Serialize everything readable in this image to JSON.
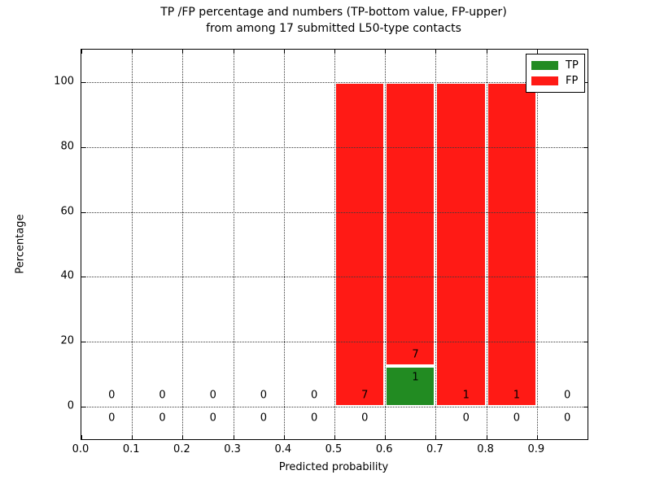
{
  "title": {
    "line1": "TP /FP percentage and numbers (TP-bottom value, FP-upper)",
    "line2": "from among 17 submitted L50-type contacts"
  },
  "axes": {
    "xlabel": "Predicted probability",
    "ylabel": "Percentage",
    "xtick_labels": [
      "0.0",
      "0.1",
      "0.2",
      "0.3",
      "0.4",
      "0.5",
      "0.6",
      "0.7",
      "0.8",
      "0.9"
    ],
    "ytick_labels": [
      "0",
      "20",
      "40",
      "60",
      "80",
      "100"
    ]
  },
  "legend": {
    "items": [
      {
        "label": "TP",
        "color": "#228b22"
      },
      {
        "label": "FP",
        "color": "#ff1a15"
      }
    ]
  },
  "colors": {
    "tp": "#228b22",
    "fp": "#ff1a15",
    "grid": "#3a3a3a",
    "text": "#000000",
    "background": "#ffffff"
  },
  "chart_data": {
    "type": "bar",
    "stacked": true,
    "title": "TP /FP percentage and numbers (TP-bottom value, FP-upper) from among 17 submitted L50-type contacts",
    "xlabel": "Predicted probability",
    "ylabel": "Percentage",
    "xlim": [
      0.0,
      1.0
    ],
    "ylim": [
      -10,
      110
    ],
    "xticks": [
      0.0,
      0.1,
      0.2,
      0.3,
      0.4,
      0.5,
      0.6,
      0.7,
      0.8,
      0.9
    ],
    "yticks": [
      0,
      20,
      40,
      60,
      80,
      100
    ],
    "grid": "dotted, drawn above bars",
    "legend_position": "upper right",
    "total_contacts": 17,
    "bin_width": 0.1,
    "label_offset_pct": 3.5,
    "label_x_offset": 0.06,
    "series": [
      {
        "name": "TP",
        "color": "#228b22",
        "pct_values": [
          0,
          0,
          0,
          0,
          0,
          0,
          12.5,
          0,
          0,
          0
        ],
        "counts": [
          0,
          0,
          0,
          0,
          0,
          0,
          1,
          0,
          0,
          0
        ]
      },
      {
        "name": "FP",
        "color": "#ff1a15",
        "pct_values": [
          0,
          0,
          0,
          0,
          0,
          100,
          87.5,
          100,
          100,
          0
        ],
        "counts": [
          0,
          0,
          0,
          0,
          0,
          7,
          7,
          1,
          1,
          0
        ]
      }
    ],
    "bins": [
      {
        "x_start": 0.0,
        "x_end": 0.1,
        "tp_count": 0,
        "fp_count": 0,
        "tp_pct": 0,
        "fp_pct": 0
      },
      {
        "x_start": 0.1,
        "x_end": 0.2,
        "tp_count": 0,
        "fp_count": 0,
        "tp_pct": 0,
        "fp_pct": 0
      },
      {
        "x_start": 0.2,
        "x_end": 0.3,
        "tp_count": 0,
        "fp_count": 0,
        "tp_pct": 0,
        "fp_pct": 0
      },
      {
        "x_start": 0.3,
        "x_end": 0.4,
        "tp_count": 0,
        "fp_count": 0,
        "tp_pct": 0,
        "fp_pct": 0
      },
      {
        "x_start": 0.4,
        "x_end": 0.5,
        "tp_count": 0,
        "fp_count": 0,
        "tp_pct": 0,
        "fp_pct": 0
      },
      {
        "x_start": 0.5,
        "x_end": 0.6,
        "tp_count": 0,
        "fp_count": 7,
        "tp_pct": 0,
        "fp_pct": 100
      },
      {
        "x_start": 0.6,
        "x_end": 0.7,
        "tp_count": 1,
        "fp_count": 7,
        "tp_pct": 12.5,
        "fp_pct": 87.5
      },
      {
        "x_start": 0.7,
        "x_end": 0.8,
        "tp_count": 0,
        "fp_count": 1,
        "tp_pct": 0,
        "fp_pct": 100
      },
      {
        "x_start": 0.8,
        "x_end": 0.9,
        "tp_count": 0,
        "fp_count": 1,
        "tp_pct": 0,
        "fp_pct": 100
      },
      {
        "x_start": 0.9,
        "x_end": 1.0,
        "tp_count": 0,
        "fp_count": 0,
        "tp_pct": 0,
        "fp_pct": 0
      }
    ]
  }
}
